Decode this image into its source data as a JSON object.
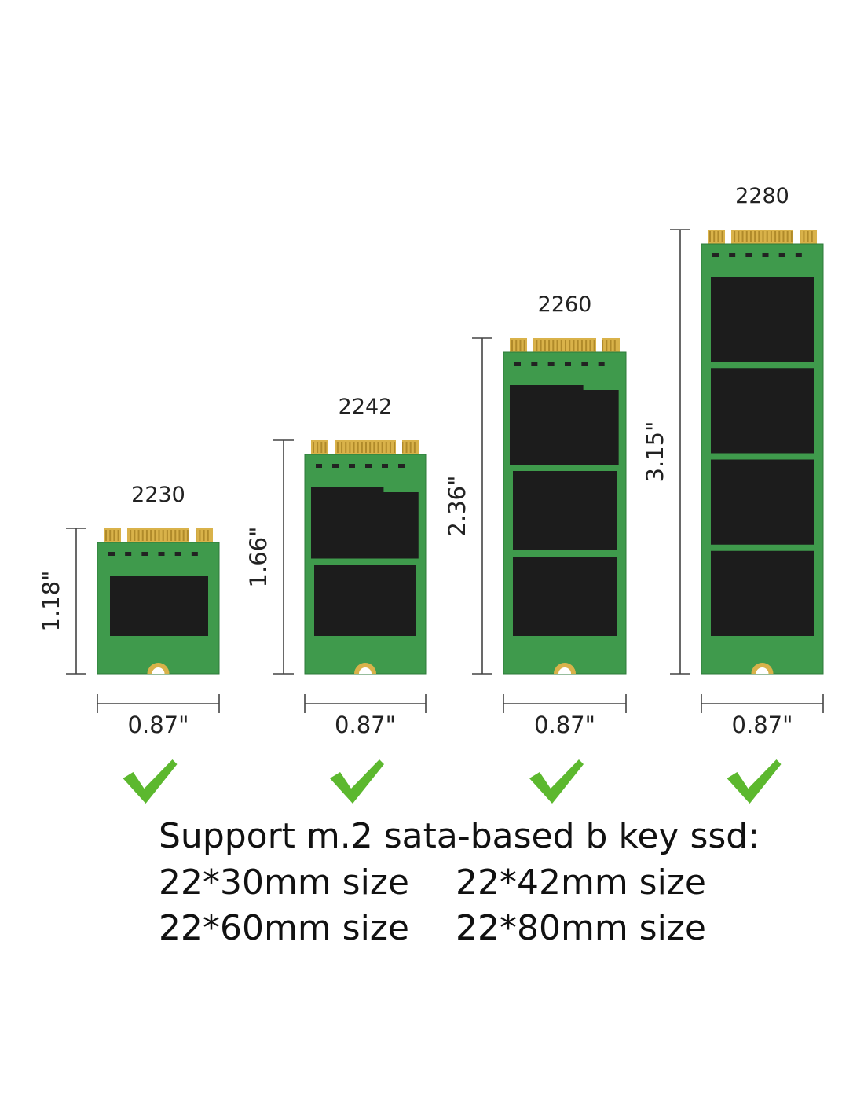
{
  "cards": [
    {
      "name": "2230",
      "height": "1.18\"",
      "width": "0.87\""
    },
    {
      "name": "2242",
      "height": "1.66\"",
      "width": "0.87\""
    },
    {
      "name": "2260",
      "height": "2.36\"",
      "width": "0.87\""
    },
    {
      "name": "2280",
      "height": "3.15\"",
      "width": "0.87\""
    }
  ],
  "caption": {
    "title": "Support m.2 sata-based b key ssd:",
    "sizes": [
      "22*30mm size",
      "22*42mm size",
      "22*60mm size",
      "22*80mm size"
    ]
  }
}
